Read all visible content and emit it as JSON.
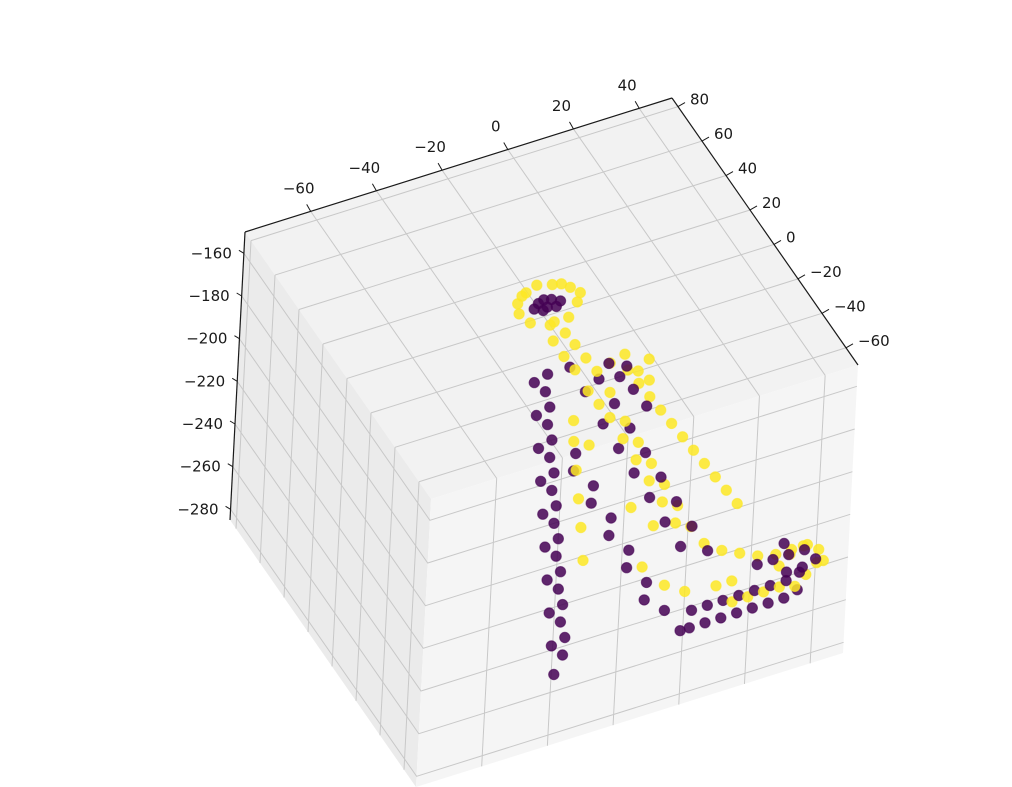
{
  "chart_data": {
    "type": "scatter",
    "projection": "3d",
    "grid": true,
    "legend": "none",
    "colormap": "viridis",
    "colors": {
      "class_0": "#440154",
      "class_1": "#fde725",
      "pane": "#f2f2f2",
      "grid": "#c8c8c8",
      "axis": "#1a1a1a"
    },
    "xlim": [
      -80,
      50
    ],
    "ylim": [
      -70,
      85
    ],
    "zlim": [
      -285,
      -150
    ],
    "x_ticks": [
      "−60",
      "−40",
      "−20",
      "0",
      "20",
      "40"
    ],
    "y_ticks": [
      "80",
      "60",
      "40",
      "20",
      "0",
      "−20",
      "−40",
      "−60"
    ],
    "z_ticks": [
      "−160",
      "−180",
      "−200",
      "−220",
      "−240",
      "−260",
      "−280"
    ],
    "series": [
      {
        "class": 0,
        "color": "#440154",
        "points": [
          [
            -6,
            43,
            -188
          ],
          [
            -4,
            45,
            -188
          ],
          [
            -2,
            46,
            -188
          ],
          [
            0,
            45,
            -188
          ],
          [
            2,
            43,
            -188
          ],
          [
            -4,
            41,
            -188
          ],
          [
            0,
            41,
            -188
          ],
          [
            -2,
            43,
            -189
          ],
          [
            -10,
            30,
            -210
          ],
          [
            -12,
            22,
            -218
          ],
          [
            -14,
            14,
            -226
          ],
          [
            -16,
            6,
            -234
          ],
          [
            -18,
            -2,
            -242
          ],
          [
            -20,
            -10,
            -250
          ],
          [
            -22,
            -18,
            -258
          ],
          [
            -24,
            -26,
            -266
          ],
          [
            -26,
            -34,
            -274
          ],
          [
            -28,
            -42,
            -280
          ],
          [
            -8,
            26,
            -212
          ],
          [
            -10,
            18,
            -220
          ],
          [
            -12,
            10,
            -228
          ],
          [
            -14,
            2,
            -236
          ],
          [
            -16,
            -6,
            -244
          ],
          [
            -18,
            -14,
            -252
          ],
          [
            -20,
            -22,
            -260
          ],
          [
            -22,
            -30,
            -268
          ],
          [
            -24,
            -38,
            -276
          ],
          [
            -6,
            30,
            -208
          ],
          [
            -8,
            22,
            -216
          ],
          [
            -10,
            14,
            -224
          ],
          [
            -12,
            6,
            -232
          ],
          [
            -14,
            -2,
            -240
          ],
          [
            -16,
            -10,
            -248
          ],
          [
            -18,
            -18,
            -256
          ],
          [
            -20,
            -26,
            -264
          ],
          [
            -22,
            -34,
            -272
          ],
          [
            -4,
            10,
            -230
          ],
          [
            -2,
            0,
            -238
          ],
          [
            0,
            -10,
            -246
          ],
          [
            2,
            -20,
            -254
          ],
          [
            4,
            -30,
            -262
          ],
          [
            6,
            -40,
            -268
          ],
          [
            8,
            -48,
            -272
          ],
          [
            -6,
            6,
            -234
          ],
          [
            -4,
            -4,
            -242
          ],
          [
            -2,
            -14,
            -250
          ],
          [
            0,
            -24,
            -258
          ],
          [
            2,
            -34,
            -266
          ],
          [
            10,
            -50,
            -270
          ],
          [
            14,
            -52,
            -268
          ],
          [
            18,
            -54,
            -266
          ],
          [
            22,
            -56,
            -264
          ],
          [
            26,
            -58,
            -262
          ],
          [
            30,
            -60,
            -260
          ],
          [
            34,
            -62,
            -258
          ],
          [
            38,
            -62,
            -256
          ],
          [
            12,
            -46,
            -266
          ],
          [
            16,
            -48,
            -264
          ],
          [
            20,
            -50,
            -262
          ],
          [
            24,
            -52,
            -260
          ],
          [
            28,
            -54,
            -258
          ],
          [
            32,
            -56,
            -256
          ],
          [
            36,
            -58,
            -254
          ],
          [
            40,
            -58,
            -252
          ],
          [
            30,
            -50,
            -250
          ],
          [
            34,
            -52,
            -248
          ],
          [
            38,
            -54,
            -246
          ],
          [
            42,
            -56,
            -244
          ],
          [
            36,
            -58,
            -250
          ],
          [
            40,
            -60,
            -248
          ],
          [
            44,
            -60,
            -246
          ],
          [
            38,
            -50,
            -244
          ],
          [
            4,
            10,
            -220
          ],
          [
            6,
            2,
            -226
          ],
          [
            8,
            -6,
            -232
          ],
          [
            10,
            -14,
            -238
          ],
          [
            12,
            -22,
            -244
          ],
          [
            14,
            -30,
            -250
          ],
          [
            2,
            20,
            -212
          ],
          [
            0,
            28,
            -206
          ],
          [
            6,
            20,
            -208
          ],
          [
            8,
            12,
            -214
          ],
          [
            10,
            4,
            -220
          ],
          [
            12,
            -4,
            -226
          ],
          [
            14,
            -12,
            -232
          ],
          [
            16,
            -20,
            -238
          ],
          [
            18,
            -28,
            -244
          ],
          [
            20,
            -36,
            -250
          ],
          [
            10,
            14,
            -204
          ],
          [
            12,
            8,
            -206
          ],
          [
            14,
            2,
            -210
          ],
          [
            8,
            18,
            -200
          ],
          [
            12,
            14,
            -200
          ]
        ]
      },
      {
        "class": 1,
        "color": "#fde725",
        "points": [
          [
            -10,
            46,
            -186
          ],
          [
            -6,
            50,
            -186
          ],
          [
            -2,
            52,
            -186
          ],
          [
            2,
            50,
            -186
          ],
          [
            6,
            46,
            -186
          ],
          [
            6,
            40,
            -188
          ],
          [
            2,
            36,
            -190
          ],
          [
            -4,
            35,
            -190
          ],
          [
            -9,
            38,
            -189
          ],
          [
            -11,
            42,
            -187
          ],
          [
            8,
            43,
            -187
          ],
          [
            -8,
            48,
            -185
          ],
          [
            4,
            48,
            -185
          ],
          [
            -2,
            37,
            -191
          ],
          [
            0,
            33,
            -194
          ],
          [
            -4,
            32,
            -195
          ],
          [
            2,
            30,
            -198
          ],
          [
            -2,
            28,
            -200
          ],
          [
            4,
            26,
            -202
          ],
          [
            0,
            24,
            -204
          ],
          [
            6,
            22,
            -206
          ],
          [
            2,
            18,
            -210
          ],
          [
            4,
            14,
            -214
          ],
          [
            8,
            16,
            -212
          ],
          [
            6,
            10,
            -218
          ],
          [
            10,
            8,
            -220
          ],
          [
            8,
            4,
            -224
          ],
          [
            12,
            2,
            -226
          ],
          [
            10,
            -2,
            -230
          ],
          [
            14,
            -4,
            -232
          ],
          [
            12,
            -8,
            -236
          ],
          [
            16,
            -10,
            -238
          ],
          [
            14,
            -14,
            -242
          ],
          [
            18,
            -16,
            -244
          ],
          [
            16,
            -20,
            -248
          ],
          [
            20,
            -22,
            -250
          ],
          [
            22,
            -28,
            -254
          ],
          [
            26,
            -32,
            -256
          ],
          [
            30,
            -36,
            -256
          ],
          [
            34,
            -40,
            -256
          ],
          [
            38,
            -44,
            -254
          ],
          [
            42,
            -46,
            -252
          ],
          [
            46,
            -48,
            -250
          ],
          [
            48,
            -52,
            -250
          ],
          [
            46,
            -56,
            -252
          ],
          [
            42,
            -58,
            -254
          ],
          [
            38,
            -60,
            -256
          ],
          [
            34,
            -58,
            -256
          ],
          [
            30,
            -56,
            -258
          ],
          [
            26,
            -54,
            -260
          ],
          [
            22,
            -52,
            -262
          ],
          [
            44,
            -50,
            -248
          ],
          [
            40,
            -50,
            -250
          ],
          [
            36,
            -52,
            -252
          ],
          [
            48,
            -56,
            -252
          ],
          [
            10,
            22,
            -204
          ],
          [
            14,
            18,
            -206
          ],
          [
            16,
            14,
            -210
          ],
          [
            18,
            10,
            -214
          ],
          [
            20,
            6,
            -218
          ],
          [
            22,
            2,
            -222
          ],
          [
            24,
            -2,
            -226
          ],
          [
            26,
            -6,
            -230
          ],
          [
            28,
            -10,
            -234
          ],
          [
            30,
            -14,
            -238
          ],
          [
            32,
            -18,
            -242
          ],
          [
            34,
            -22,
            -246
          ],
          [
            14,
            10,
            -200
          ],
          [
            16,
            6,
            -202
          ],
          [
            18,
            12,
            -198
          ],
          [
            12,
            16,
            -196
          ],
          [
            -4,
            12,
            -226
          ],
          [
            -6,
            4,
            -232
          ],
          [
            -8,
            -4,
            -238
          ],
          [
            -10,
            -12,
            -244
          ],
          [
            -12,
            -20,
            -252
          ],
          [
            -2,
            18,
            -222
          ],
          [
            0,
            10,
            -228
          ],
          [
            4,
            -26,
            -258
          ],
          [
            8,
            -34,
            -262
          ],
          [
            12,
            -40,
            -262
          ],
          [
            6,
            -10,
            -244
          ],
          [
            10,
            -18,
            -248
          ],
          [
            20,
            -44,
            -260
          ],
          [
            24,
            -46,
            -258
          ]
        ]
      }
    ]
  }
}
